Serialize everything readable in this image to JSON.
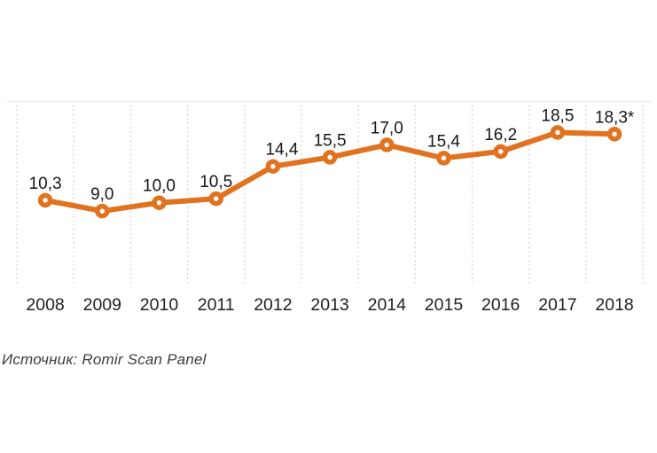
{
  "chart_data": {
    "type": "line",
    "title": "",
    "categories": [
      "2008",
      "2009",
      "2010",
      "2011",
      "2012",
      "2013",
      "2014",
      "2015",
      "2016",
      "2017",
      "2018"
    ],
    "series": [
      {
        "name": "value",
        "values": [
          10.3,
          9.0,
          10.0,
          10.5,
          14.4,
          15.5,
          17.0,
          15.4,
          16.2,
          18.5,
          18.3
        ],
        "labels": [
          "10,3",
          "9,0",
          "10,0",
          "10,5",
          "14,4",
          "15,5",
          "17,0",
          "15,4",
          "16,2",
          "18,5",
          "18,3*"
        ]
      }
    ],
    "xlabel": "",
    "ylabel": "",
    "ylim": [
      0,
      22.3
    ],
    "legend": "none",
    "grid": {
      "vertical_dashed": true,
      "horizontal": false,
      "position": "between-categories"
    },
    "layout": {
      "label_dx": [
        0,
        0,
        0,
        0,
        10,
        0,
        0,
        0,
        0,
        0,
        0
      ]
    },
    "colors": {
      "line": "#e1721f",
      "marker_fill": "#ffffff",
      "grid": "#ddd5c2",
      "plot_top_border": "#f0ede5",
      "data_label_text": "#161616",
      "axis_text": "#212121",
      "source_text": "#3d3d3d"
    }
  },
  "source": {
    "text": "Источник: Romir Scan Panel"
  }
}
